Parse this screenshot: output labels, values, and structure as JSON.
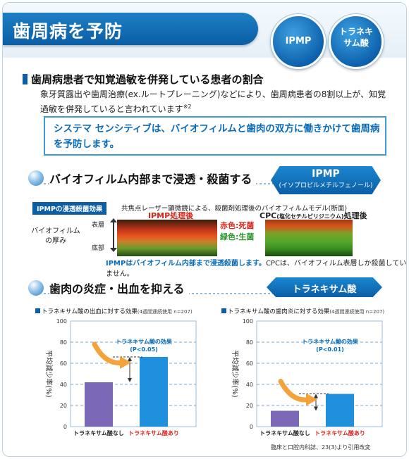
{
  "header": {
    "title": "歯周病を予防",
    "badge_ipmp": "IPMP",
    "badge_tranexamic": "トラネキサム酸"
  },
  "section1": {
    "heading": "歯周病患者で知覚過敏を併発している患者の割合",
    "body": "象牙質露出や歯周治療(ex.ルートプレーニング)などにより、歯周病患者の8割以上が、知覚過敏を併発していると言われています",
    "note_mark": "※2",
    "callout": "システマ センシティブは、バイオフィルムと歯肉の双方に働きかけて歯周病を予防します。"
  },
  "section2": {
    "heading": "バイオフィルム内部まで浸透・殺菌する",
    "badge_main": "IPMP",
    "badge_sub": "(イソプロピルメチルフェノール)",
    "tag": "IPMPの浸透殺菌効果",
    "method": "共焦点レーザー顕微鏡による、殺菌剤処理後のバイオフィルムモデル(断面)",
    "image_ipmp_label": "IPMP処理後",
    "image_cpc_label": "CPC",
    "image_cpc_paren": "(塩化セチルピリジニウム)",
    "image_cpc_suffix": "処理後",
    "biofilm_label": "バイオフィルムの厚み",
    "axis_top": "表層",
    "axis_bottom": "底部",
    "legend_dead": "赤色:死菌",
    "legend_alive": "緑色:生菌",
    "note_highlight": "IPMPはバイオフィルム内部まで浸透殺菌します。",
    "note_rest": "CPCは、バイオフィルム表層しか殺菌していません。"
  },
  "section3": {
    "heading": "歯肉の炎症・出血を抑える",
    "badge": "トラネキサム酸",
    "reference": "臨床と口腔内科誌、23(3)より引用改変"
  },
  "chart_data": [
    {
      "type": "bar",
      "title": "トラネキサム酸の出血に対する効果",
      "subtitle": "(4週間連続使用 n=207)",
      "ylabel": "平均減少率(%)",
      "ylim": [
        0,
        100
      ],
      "yticks": [
        0,
        20,
        40,
        60,
        80,
        100
      ],
      "categories": [
        "トラネキサム酸なし",
        "トラネキサム酸あり"
      ],
      "values": [
        42,
        66
      ],
      "colors": [
        "#7b69b8",
        "#1e90dc"
      ],
      "annotation": "トラネキサム酸の効果",
      "pvalue": "(P<0.05)"
    },
    {
      "type": "bar",
      "title": "トラネキサム酸の歯肉炎に対する効果",
      "subtitle": "(4週間連続使用 n=207)",
      "ylabel": "平均減少率(%)",
      "ylim": [
        0,
        100
      ],
      "yticks": [
        0,
        20,
        40,
        60,
        80,
        100
      ],
      "categories": [
        "トラネキサム酸なし",
        "トラネキサム酸あり"
      ],
      "values": [
        15,
        31
      ],
      "colors": [
        "#7b69b8",
        "#1e90dc"
      ],
      "annotation": "トラネキサム酸の効果",
      "pvalue": "(P<0.01)"
    }
  ]
}
